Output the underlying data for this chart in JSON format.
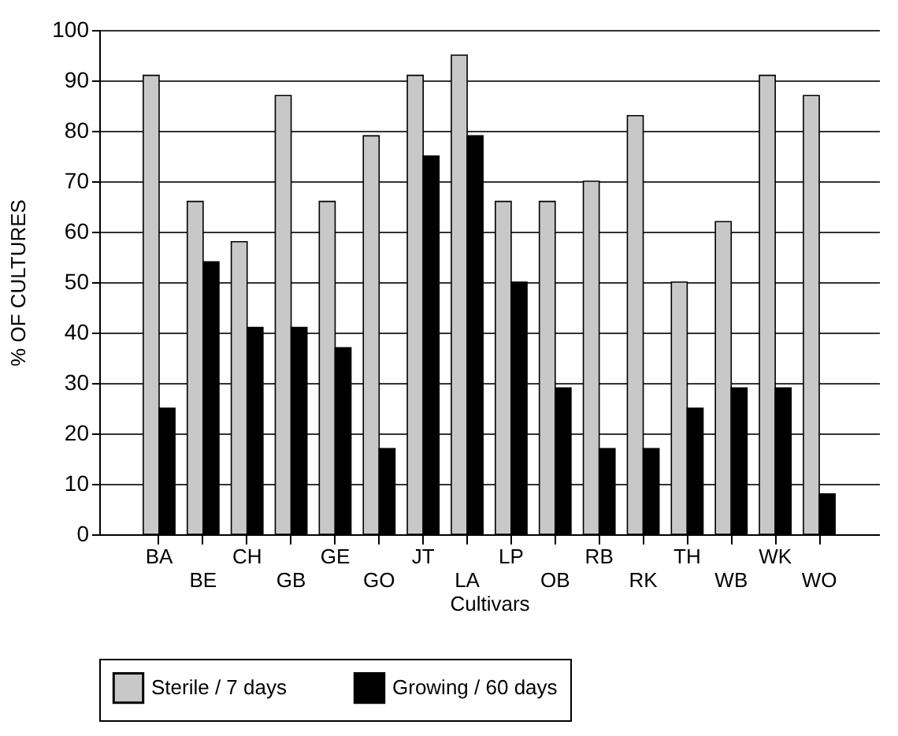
{
  "chart_data": {
    "type": "bar",
    "xlabel": "Cultivars",
    "ylabel": "% OF CULTURES",
    "categories": [
      "BA",
      "BE",
      "CH",
      "GB",
      "GE",
      "GO",
      "JT",
      "LA",
      "LP",
      "OB",
      "RB",
      "RK",
      "TH",
      "WB",
      "WK",
      "WO"
    ],
    "series": [
      {
        "name": "Sterile / 7 days",
        "color": "#c8c8c8",
        "values": [
          91,
          66,
          58,
          87,
          66,
          79,
          91,
          95,
          66,
          66,
          70,
          83,
          50,
          62,
          91,
          87
        ]
      },
      {
        "name": "Growing / 60 days",
        "color": "#000000",
        "values": [
          25,
          54,
          41,
          41,
          37,
          17,
          75,
          79,
          50,
          29,
          17,
          17,
          25,
          29,
          29,
          8
        ]
      }
    ],
    "ylim": [
      0,
      100
    ],
    "yticks": [
      0,
      10,
      20,
      30,
      40,
      50,
      60,
      70,
      80,
      90,
      100
    ],
    "grid": "y",
    "legend": "bottom"
  }
}
